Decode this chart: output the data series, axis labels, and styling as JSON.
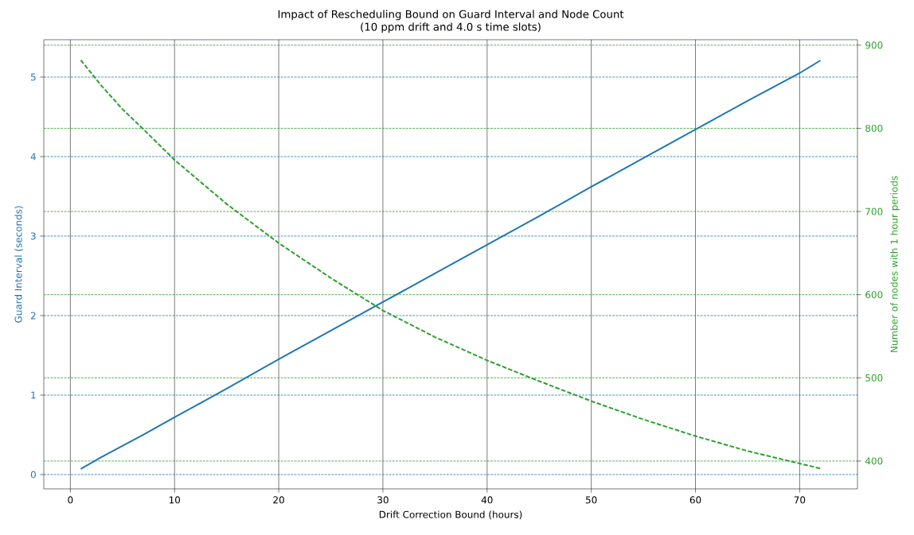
{
  "chart_data": {
    "type": "line",
    "title": "Impact of Rescheduling Bound on Guard Interval and Node Count",
    "subtitle": "(10 ppm drift and 4.0 s time slots)",
    "xlabel": "Drift Correction Bound (hours)",
    "ylabel": "Guard Interval (seconds)",
    "y2label": "Number of nodes with 1 hour periods",
    "x": [
      1,
      3,
      5,
      7,
      10,
      15,
      20,
      25,
      30,
      35,
      40,
      45,
      50,
      55,
      60,
      65,
      70,
      72
    ],
    "series": [
      {
        "color": "#1f77b4",
        "line_style": "solid",
        "axis": "y",
        "values": [
          0.07,
          0.22,
          0.36,
          0.5,
          0.72,
          1.08,
          1.45,
          1.81,
          2.17,
          2.53,
          2.89,
          3.25,
          3.62,
          3.98,
          4.34,
          4.7,
          5.05,
          5.21
        ]
      },
      {
        "color": "#2ca02c",
        "line_style": "dashed",
        "axis": "y2",
        "values": [
          882,
          851,
          823,
          799,
          762,
          709,
          662,
          620,
          581,
          549,
          521,
          496,
          472,
          450,
          430,
          412,
          397,
          391
        ]
      }
    ],
    "xlim": [
      -2.55,
      75.55
    ],
    "xticks": [
      0,
      10,
      20,
      30,
      40,
      50,
      60,
      70
    ],
    "ylim": [
      -0.18,
      5.47
    ],
    "yticks": [
      0,
      1,
      2,
      3,
      4,
      5
    ],
    "y2lim": [
      366.5,
      906.5
    ],
    "y2ticks": [
      400,
      500,
      600,
      700,
      800,
      900
    ],
    "grid": true,
    "marker": "none"
  }
}
